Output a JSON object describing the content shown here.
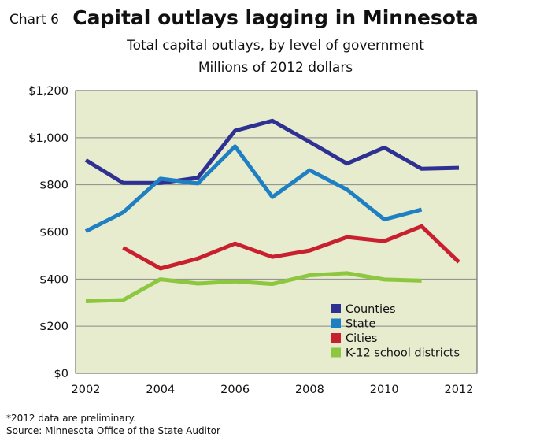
{
  "header": {
    "chart_number": "Chart 6",
    "title": "Capital outlays lagging in Minnesota",
    "subtitle": "Total capital outlays, by level of government",
    "units": "Millions of 2012 dollars"
  },
  "footer": {
    "note": "*2012 data are preliminary.",
    "source": "Source: Minnesota Office of the State Auditor"
  },
  "colors": {
    "plot_background": "#e8ecce",
    "grid": "#8a8a8a",
    "counties": "#2e3192",
    "state": "#1f7fc3",
    "cities": "#c8202f",
    "k12": "#8dc63f"
  },
  "chart_data": {
    "type": "line",
    "title": "Capital outlays lagging in Minnesota",
    "subtitle": "Total capital outlays, by level of government",
    "xlabel": "",
    "ylabel": "Millions of 2012 dollars",
    "xlim": [
      2002,
      2012
    ],
    "ylim": [
      0,
      1200
    ],
    "x_ticks": [
      2002,
      2004,
      2006,
      2008,
      2010,
      2012
    ],
    "x_tick_labels": [
      "2002",
      "2004",
      "2006",
      "2008",
      "2010",
      "2012"
    ],
    "y_ticks": [
      0,
      200,
      400,
      600,
      800,
      1000,
      1200
    ],
    "y_tick_labels": [
      "$0",
      "$200",
      "$400",
      "$600",
      "$800",
      "$1,000",
      "$1,200"
    ],
    "grid": true,
    "legend_position": "bottom-right",
    "series": [
      {
        "name": "Counties",
        "color": "#2e3192",
        "x": [
          2002,
          2003,
          2004,
          2005,
          2006,
          2007,
          2008,
          2009,
          2010,
          2011,
          2012
        ],
        "values": [
          905,
          808,
          808,
          830,
          1030,
          1072,
          982,
          890,
          958,
          868,
          872
        ]
      },
      {
        "name": "State",
        "color": "#1f7fc3",
        "x": [
          2002,
          2003,
          2004,
          2005,
          2006,
          2007,
          2008,
          2009,
          2010,
          2011
        ],
        "values": [
          603,
          683,
          826,
          806,
          963,
          748,
          862,
          780,
          653,
          695
        ]
      },
      {
        "name": "Cities",
        "color": "#c8202f",
        "x": [
          2003,
          2004,
          2005,
          2006,
          2007,
          2008,
          2009,
          2010,
          2011,
          2012
        ],
        "values": [
          533,
          445,
          487,
          551,
          494,
          521,
          578,
          561,
          624,
          472
        ]
      },
      {
        "name": "K-12 school districts",
        "color": "#8dc63f",
        "x": [
          2002,
          2003,
          2004,
          2005,
          2006,
          2007,
          2008,
          2009,
          2010,
          2011
        ],
        "values": [
          306,
          311,
          399,
          381,
          390,
          379,
          416,
          425,
          398,
          393
        ]
      }
    ]
  }
}
